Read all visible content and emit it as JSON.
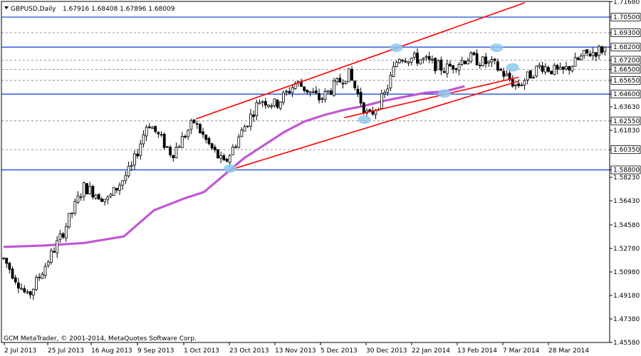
{
  "header": {
    "symbol_tf": "GBPUSD,Daily",
    "ohlc": "1.67916 1.68408 1.67896 1.68009"
  },
  "copyright": "GCM MetaTrader, © 2001-2014, MetaQuotes Software Corp.",
  "colors": {
    "background": "#ffffff",
    "candle": "#000000",
    "moving_average": "#c158d2",
    "channel_lines": "#ff0000",
    "horizontal_levels": "#1f4fd6",
    "highlight_markers": "#8ec9ee"
  },
  "chart_data": {
    "type": "candlestick",
    "ylim": [
      1.4558,
      1.717
    ],
    "y_ticks": [
      "1.71680",
      "1.70500",
      "1.69300",
      "1.68200",
      "1.67200",
      "1.66500",
      "1.65650",
      "1.64600",
      "1.63630",
      "1.62550",
      "1.61830",
      "1.60350",
      "1.58800",
      "1.58230",
      "1.56430",
      "1.54580",
      "1.52780",
      "1.50980",
      "1.49180",
      "1.47380",
      "1.45580"
    ],
    "x_labels": [
      "2 Jul 2013",
      "25 Jul 2013",
      "16 Aug 2013",
      "9 Sep 2013",
      "1 Oct 2013",
      "23 Oct 2013",
      "13 Nov 2013",
      "5 Dec 2013",
      "30 Dec 2013",
      "22 Jan 2014",
      "13 Feb 2014",
      "7 Mar 2014",
      "28 Mar 2014"
    ],
    "bar_count": 203,
    "trend_series": [
      [
        0,
        1.52
      ],
      [
        12,
        1.49
      ],
      [
        28,
        1.535
      ],
      [
        40,
        1.575
      ],
      [
        52,
        1.565
      ],
      [
        64,
        1.59
      ],
      [
        72,
        1.625
      ],
      [
        84,
        1.6
      ],
      [
        95,
        1.625
      ],
      [
        102,
        1.608
      ],
      [
        110,
        1.592
      ],
      [
        118,
        1.615
      ],
      [
        128,
        1.642
      ],
      [
        136,
        1.638
      ],
      [
        146,
        1.655
      ],
      [
        158,
        1.642
      ],
      [
        172,
        1.662
      ],
      [
        182,
        1.628
      ],
      [
        190,
        1.645
      ],
      [
        197,
        1.675
      ],
      [
        210,
        1.672
      ],
      [
        220,
        1.665
      ],
      [
        232,
        1.674
      ],
      [
        245,
        1.668
      ],
      [
        256,
        1.652
      ],
      [
        268,
        1.668
      ],
      [
        278,
        1.662
      ],
      [
        290,
        1.676
      ],
      [
        300,
        1.681
      ]
    ],
    "moving_average": [
      [
        0,
        1.529
      ],
      [
        20,
        1.53
      ],
      [
        40,
        1.532
      ],
      [
        60,
        1.537
      ],
      [
        75,
        1.557
      ],
      [
        90,
        1.566
      ],
      [
        100,
        1.571
      ],
      [
        110,
        1.584
      ],
      [
        120,
        1.597
      ],
      [
        130,
        1.607
      ],
      [
        140,
        1.617
      ],
      [
        150,
        1.625
      ],
      [
        160,
        1.63
      ],
      [
        170,
        1.634
      ],
      [
        180,
        1.637
      ],
      [
        190,
        1.641
      ],
      [
        200,
        1.644
      ],
      [
        210,
        1.647
      ],
      [
        220,
        1.648
      ],
      [
        230,
        1.652
      ]
    ],
    "channel_lines": [
      [
        [
          96,
          1.627
        ],
        [
          260,
          1.716
        ]
      ],
      [
        [
          113,
          1.588
        ],
        [
          257,
          1.656
        ]
      ],
      [
        [
          170,
          1.628
        ],
        [
          257,
          1.659
        ]
      ]
    ],
    "horizontal_levels": [
      1.705,
      1.682,
      1.646,
      1.588
    ],
    "dashed_levels": [
      1.693,
      1.672,
      1.665,
      1.6565,
      1.6255,
      1.6035
    ],
    "highlight_markers": [
      [
        113,
        1.589
      ],
      [
        196,
        1.6815
      ],
      [
        180,
        1.6265
      ],
      [
        220,
        1.6465
      ],
      [
        246,
        1.6815
      ],
      [
        254,
        1.6665
      ]
    ]
  }
}
